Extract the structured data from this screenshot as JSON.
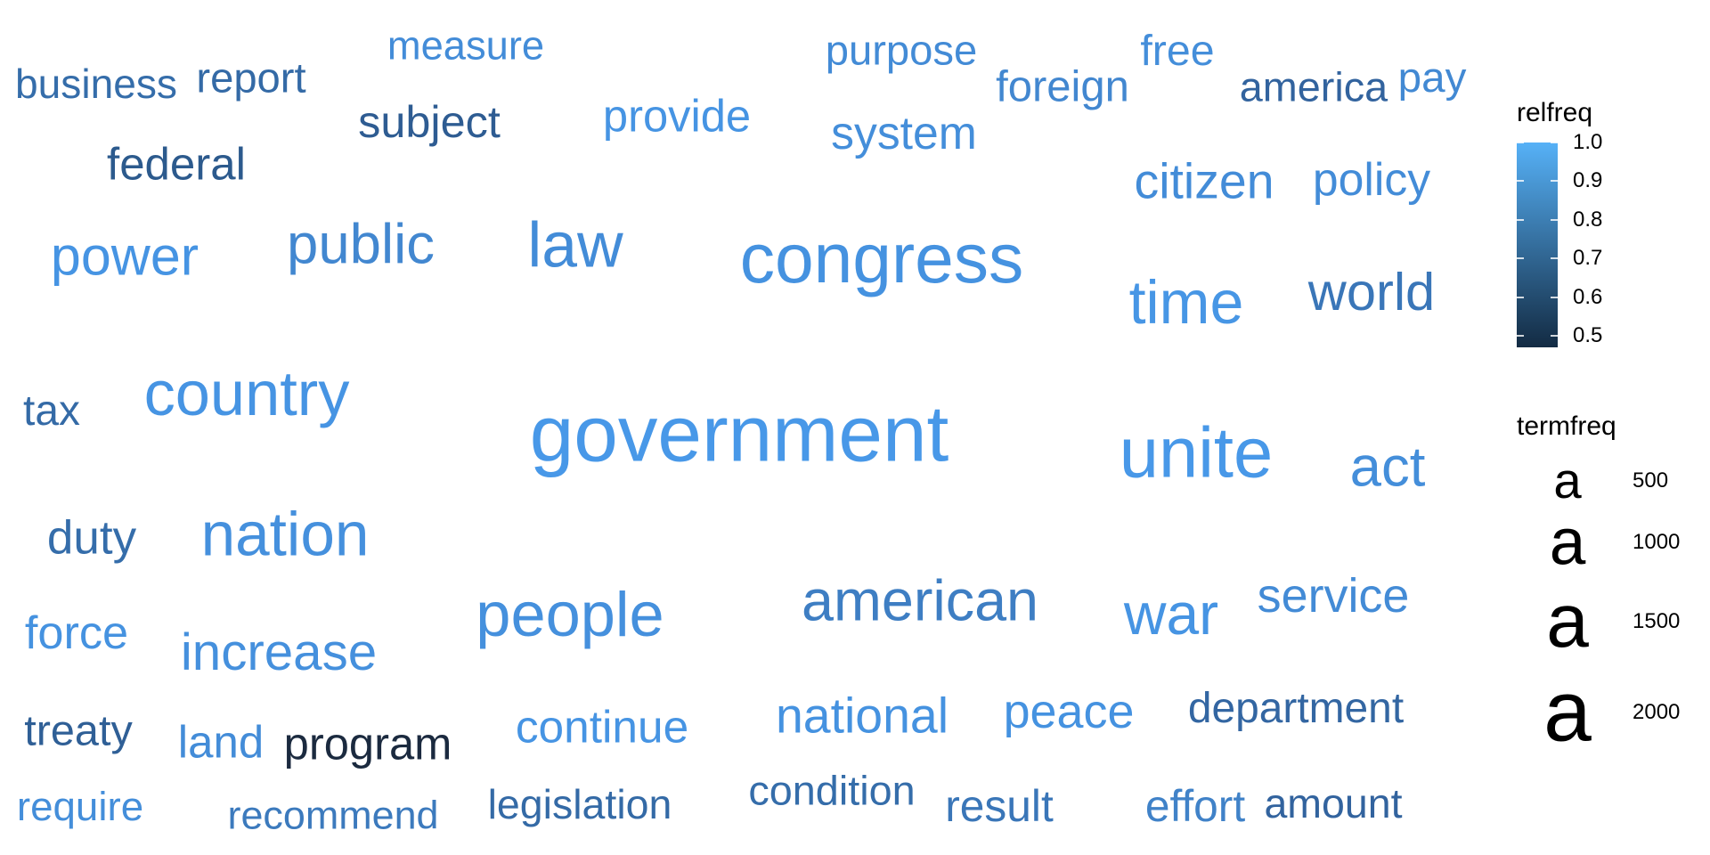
{
  "chart_data": {
    "type": "wordcloud",
    "words": [
      {
        "text": "government",
        "termfreq": 2300,
        "relfreq": 1.0,
        "color": "#4898E8"
      },
      {
        "text": "congress",
        "termfreq": 1700,
        "relfreq": 0.96,
        "color": "#4592E0"
      },
      {
        "text": "unite",
        "termfreq": 1750,
        "relfreq": 1.0,
        "color": "#4898E8"
      },
      {
        "text": "country",
        "termfreq": 1300,
        "relfreq": 0.97,
        "color": "#4694E3"
      },
      {
        "text": "law",
        "termfreq": 1350,
        "relfreq": 0.93,
        "color": "#438CD8"
      },
      {
        "text": "people",
        "termfreq": 1300,
        "relfreq": 0.95,
        "color": "#4590DD"
      },
      {
        "text": "nation",
        "termfreq": 1250,
        "relfreq": 0.95,
        "color": "#4590DD"
      },
      {
        "text": "time",
        "termfreq": 1200,
        "relfreq": 0.98,
        "color": "#4796E5"
      },
      {
        "text": "american",
        "termfreq": 1050,
        "relfreq": 0.85,
        "color": "#3E7EC3"
      },
      {
        "text": "war",
        "termfreq": 1100,
        "relfreq": 0.97,
        "color": "#4694E3"
      },
      {
        "text": "public",
        "termfreq": 1000,
        "relfreq": 0.9,
        "color": "#4287D0"
      },
      {
        "text": "act",
        "termfreq": 1000,
        "relfreq": 0.94,
        "color": "#448EDA"
      },
      {
        "text": "power",
        "termfreq": 900,
        "relfreq": 0.97,
        "color": "#4694E3"
      },
      {
        "text": "world",
        "termfreq": 850,
        "relfreq": 0.8,
        "color": "#3A76B8"
      },
      {
        "text": "increase",
        "termfreq": 800,
        "relfreq": 0.95,
        "color": "#4590DD"
      },
      {
        "text": "citizen",
        "termfreq": 700,
        "relfreq": 0.93,
        "color": "#438CD8"
      },
      {
        "text": "national",
        "termfreq": 700,
        "relfreq": 0.96,
        "color": "#4592E0"
      },
      {
        "text": "service",
        "termfreq": 650,
        "relfreq": 0.92,
        "color": "#438BD6"
      },
      {
        "text": "peace",
        "termfreq": 650,
        "relfreq": 0.96,
        "color": "#4592E0"
      },
      {
        "text": "duty",
        "termfreq": 620,
        "relfreq": 0.74,
        "color": "#356DAA"
      },
      {
        "text": "force",
        "termfreq": 600,
        "relfreq": 0.96,
        "color": "#4592E0"
      },
      {
        "text": "policy",
        "termfreq": 580,
        "relfreq": 0.93,
        "color": "#438CD8"
      },
      {
        "text": "system",
        "termfreq": 580,
        "relfreq": 0.94,
        "color": "#448EDA"
      },
      {
        "text": "continue",
        "termfreq": 570,
        "relfreq": 0.97,
        "color": "#4694E3"
      },
      {
        "text": "land",
        "termfreq": 560,
        "relfreq": 0.93,
        "color": "#438CD8"
      },
      {
        "text": "federal",
        "termfreq": 560,
        "relfreq": 0.6,
        "color": "#2C5A8D"
      },
      {
        "text": "provide",
        "termfreq": 550,
        "relfreq": 0.97,
        "color": "#4694E3"
      },
      {
        "text": "program",
        "termfreq": 550,
        "relfreq": 0.47,
        "color": "#1B2A3F"
      },
      {
        "text": "subject",
        "termfreq": 540,
        "relfreq": 0.62,
        "color": "#2E5C92"
      },
      {
        "text": "result",
        "termfreq": 520,
        "relfreq": 0.8,
        "color": "#3A76B8"
      },
      {
        "text": "effort",
        "termfreq": 520,
        "relfreq": 0.87,
        "color": "#4082C8"
      },
      {
        "text": "foreign",
        "termfreq": 500,
        "relfreq": 0.9,
        "color": "#4287D0"
      },
      {
        "text": "treaty",
        "termfreq": 490,
        "relfreq": 0.64,
        "color": "#2F5F96"
      },
      {
        "text": "free",
        "termfreq": 480,
        "relfreq": 0.94,
        "color": "#448EDA"
      },
      {
        "text": "department",
        "termfreq": 470,
        "relfreq": 0.7,
        "color": "#3366A2"
      },
      {
        "text": "tax",
        "termfreq": 470,
        "relfreq": 0.72,
        "color": "#346AA6"
      },
      {
        "text": "pay",
        "termfreq": 460,
        "relfreq": 0.91,
        "color": "#4289D3"
      },
      {
        "text": "purpose",
        "termfreq": 450,
        "relfreq": 0.92,
        "color": "#438BD6"
      },
      {
        "text": "report",
        "termfreq": 450,
        "relfreq": 0.72,
        "color": "#346AA6"
      },
      {
        "text": "condition",
        "termfreq": 440,
        "relfreq": 0.74,
        "color": "#356DAA"
      },
      {
        "text": "america",
        "termfreq": 440,
        "relfreq": 0.68,
        "color": "#32639E"
      },
      {
        "text": "amount",
        "termfreq": 430,
        "relfreq": 0.68,
        "color": "#32639E"
      },
      {
        "text": "legislation",
        "termfreq": 430,
        "relfreq": 0.72,
        "color": "#346AA6"
      },
      {
        "text": "business",
        "termfreq": 420,
        "relfreq": 0.74,
        "color": "#356DAA"
      },
      {
        "text": "require",
        "termfreq": 410,
        "relfreq": 0.94,
        "color": "#448EDA"
      },
      {
        "text": "measure",
        "termfreq": 400,
        "relfreq": 0.93,
        "color": "#438CD8"
      },
      {
        "text": "recommend",
        "termfreq": 390,
        "relfreq": 0.82,
        "color": "#3C7ABD"
      }
    ],
    "legend_color": {
      "title": "relfreq",
      "ticks": [
        "1.0",
        "0.9",
        "0.8",
        "0.7",
        "0.6",
        "0.5"
      ],
      "tick_values": [
        1.0,
        0.9,
        0.8,
        0.7,
        0.6,
        0.5
      ],
      "range": [
        0.47,
        1.0
      ],
      "low_color": "#132B43",
      "high_color": "#56B1F7"
    },
    "legend_size": {
      "title": "termfreq",
      "glyph": "a",
      "breaks": [
        "500",
        "1000",
        "1500",
        "2000"
      ],
      "break_values": [
        500,
        1000,
        1500,
        2000
      ]
    }
  }
}
